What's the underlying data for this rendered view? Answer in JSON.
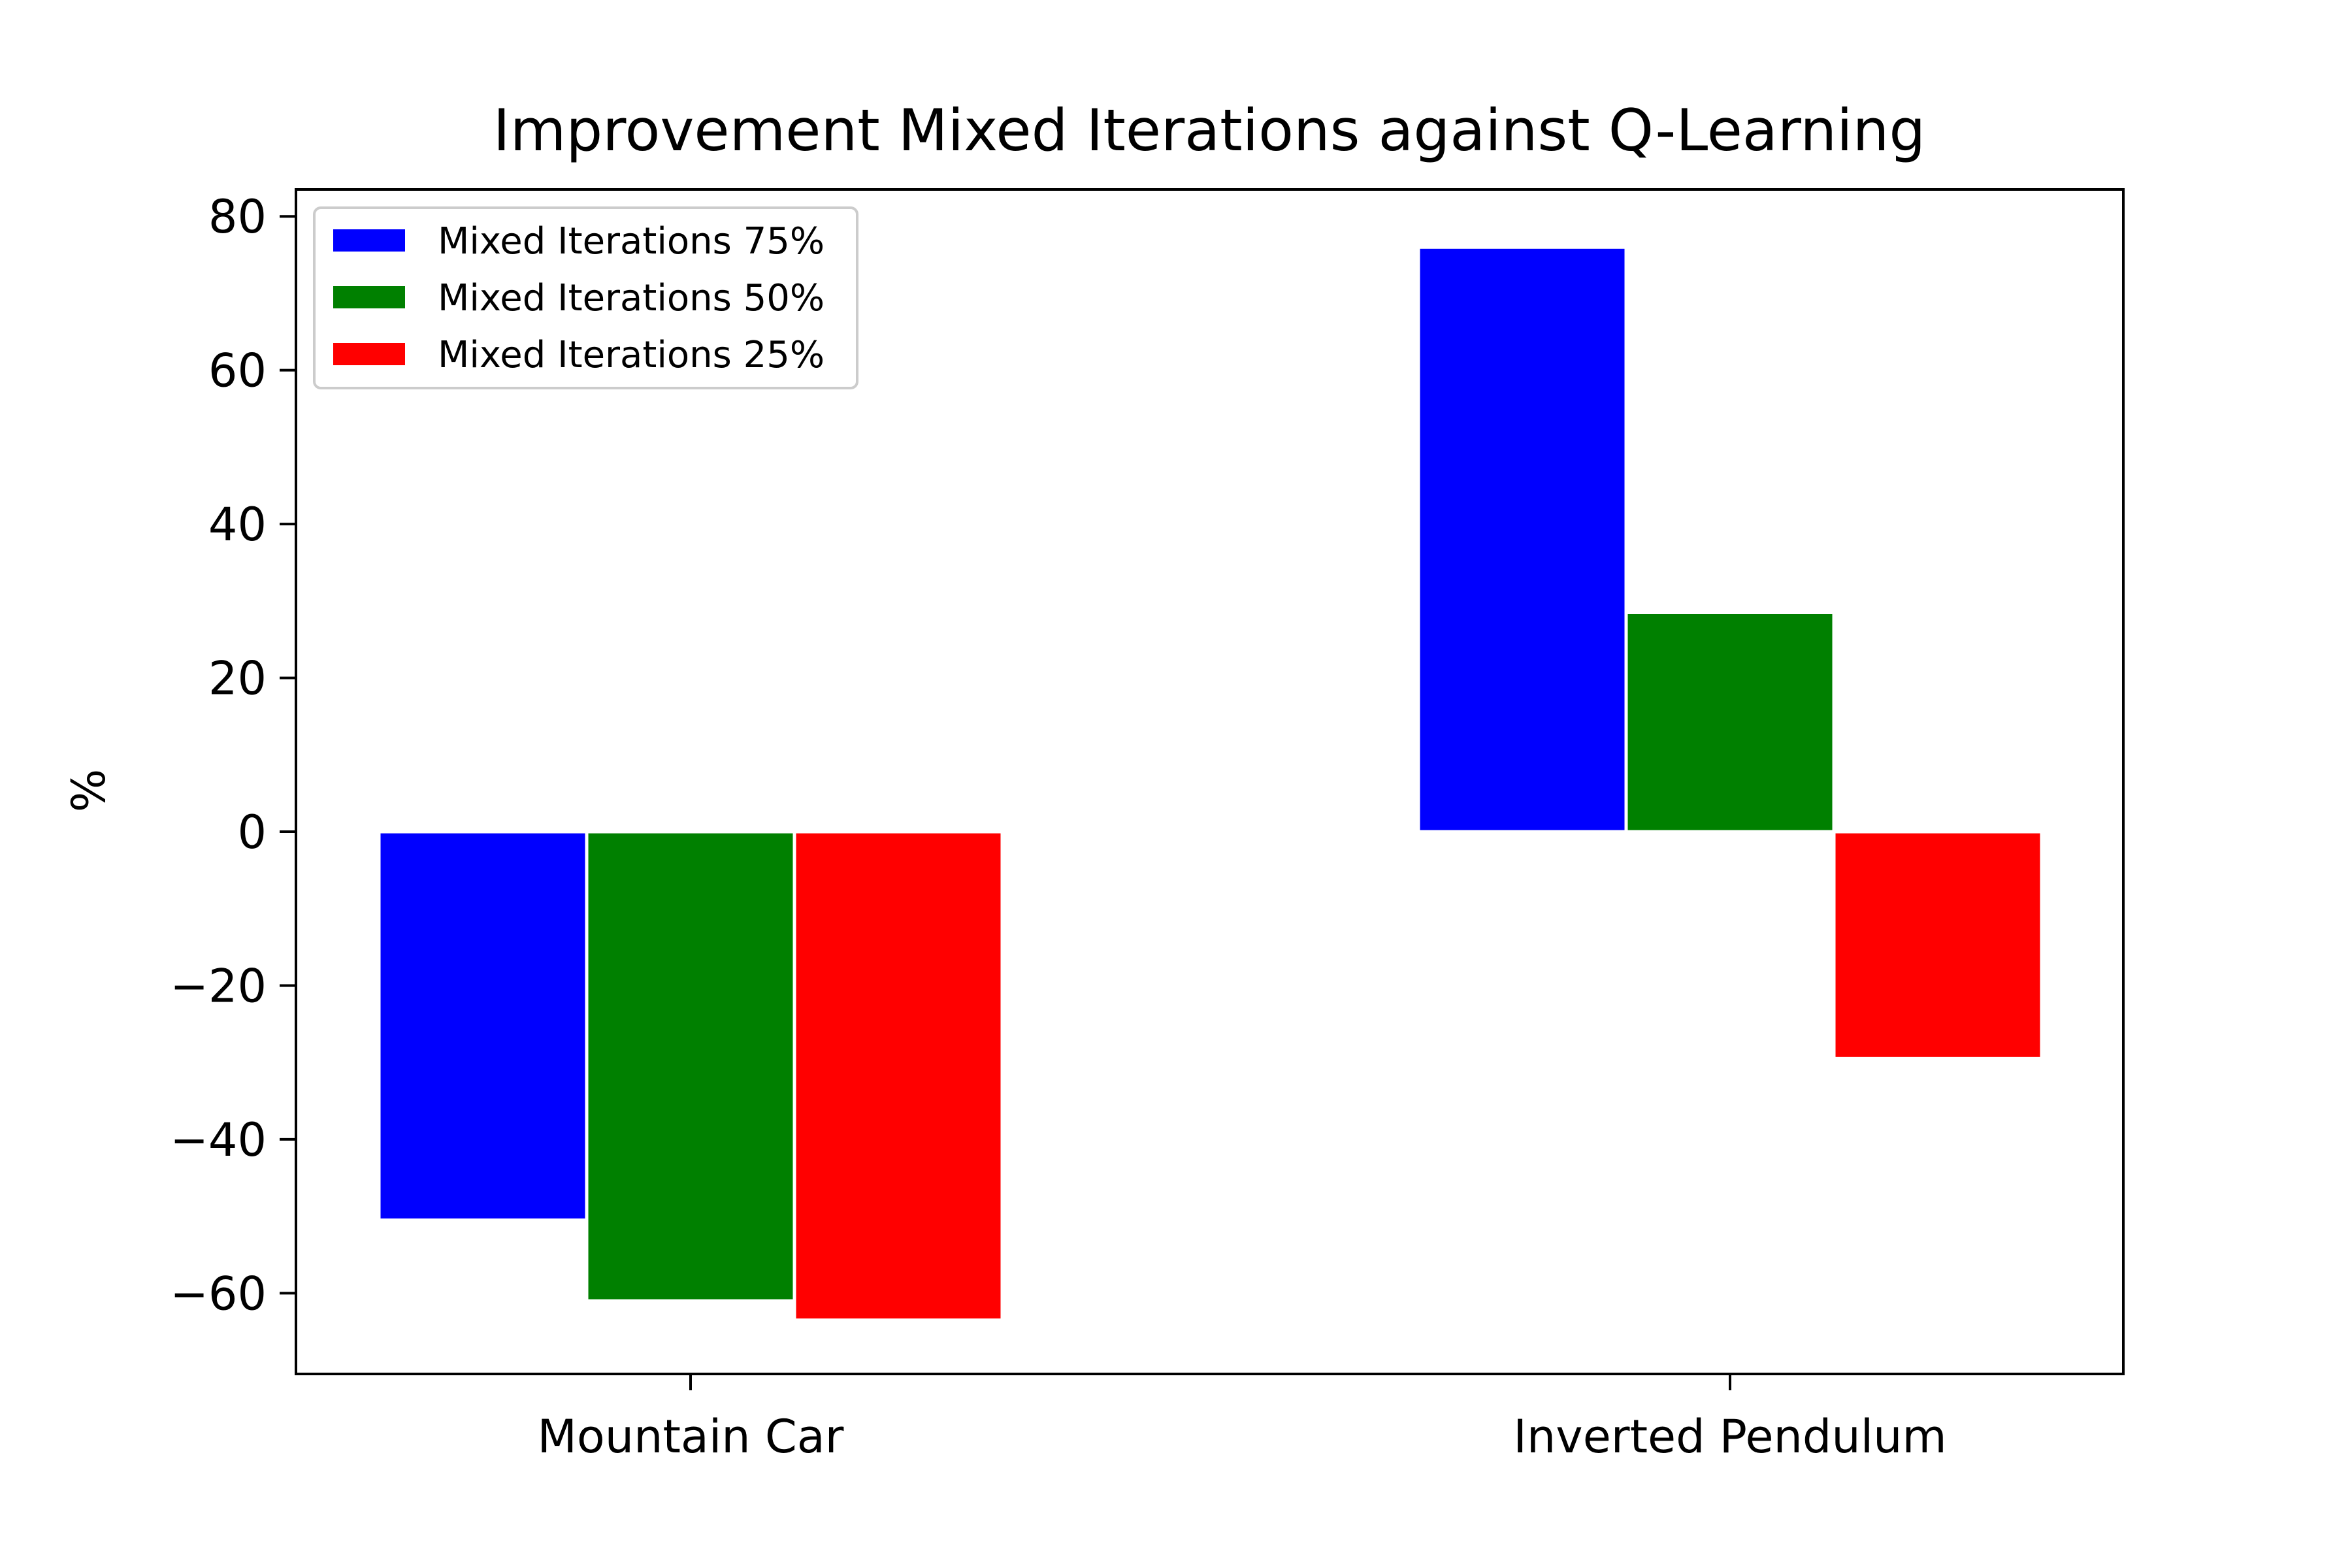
{
  "chart_data": {
    "type": "bar",
    "title": "Improvement Mixed Iterations against Q-Learning",
    "xlabel": "",
    "ylabel": "%",
    "categories": [
      "Mountain Car",
      "Inverted Pendulum"
    ],
    "series": [
      {
        "name": "Mixed Iterations 75%",
        "color": "#0000ff",
        "values": [
          -50.5,
          76.0
        ]
      },
      {
        "name": "Mixed Iterations 50%",
        "color": "#008000",
        "values": [
          -61.0,
          28.5
        ]
      },
      {
        "name": "Mixed Iterations 25%",
        "color": "#ff0000",
        "values": [
          -63.5,
          -29.5
        ]
      }
    ],
    "ylim": [
      -70.5,
      83.5
    ],
    "yticks": [
      80,
      60,
      40,
      20,
      0,
      -20,
      -40,
      -60
    ],
    "ytick_labels": [
      "80",
      "60",
      "40",
      "20",
      "0",
      "−20",
      "−40",
      "−60"
    ],
    "grid": false,
    "legend_position": "top-left"
  }
}
